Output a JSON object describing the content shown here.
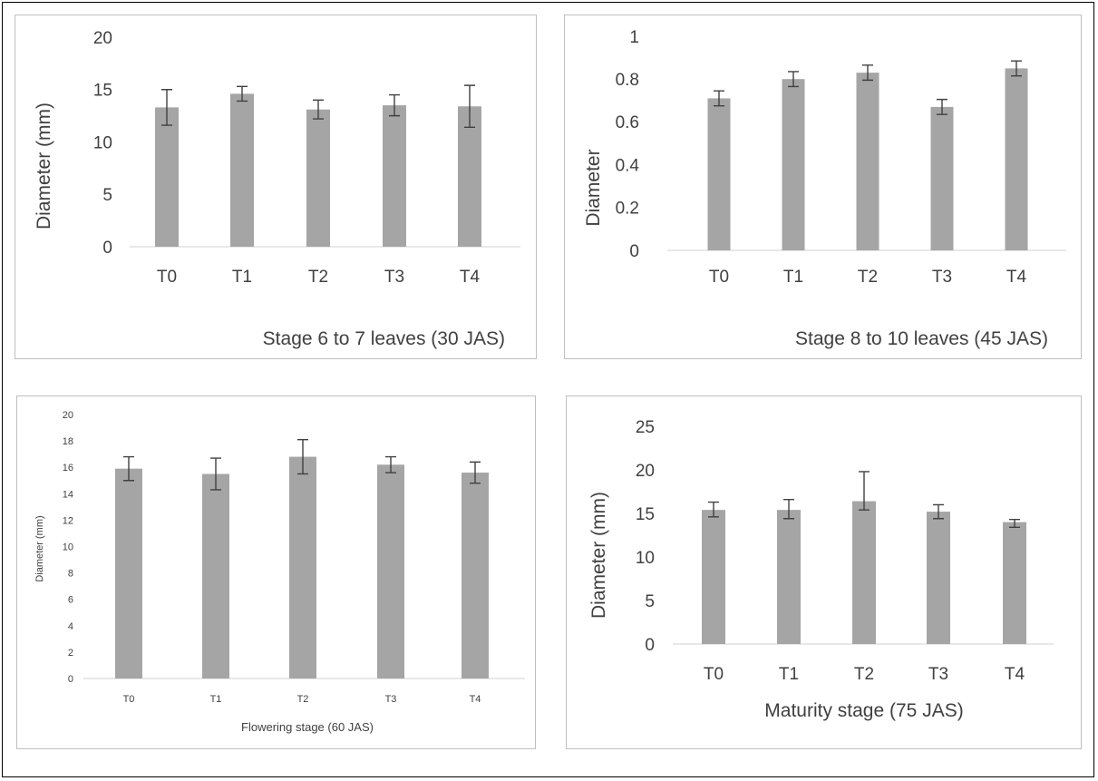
{
  "chart_data": [
    {
      "type": "bar",
      "categories": [
        "T0",
        "T1",
        "T2",
        "T3",
        "T4"
      ],
      "values": [
        13.3,
        14.6,
        13.1,
        13.5,
        13.4
      ],
      "error": [
        1.7,
        0.7,
        0.9,
        1.0,
        2.0
      ],
      "ylabel": "Diameter (mm)",
      "xlabel": "Stage 6 to 7 leaves (30 JAS)",
      "ylim": [
        0,
        20
      ],
      "yticks": [
        "0",
        "5",
        "10",
        "15",
        "20"
      ],
      "grid": false
    },
    {
      "type": "bar",
      "categories": [
        "T0",
        "T1",
        "T2",
        "T3",
        "T4"
      ],
      "values": [
        0.71,
        0.8,
        0.83,
        0.67,
        0.85
      ],
      "error": [
        0.035,
        0.035,
        0.035,
        0.035,
        0.035
      ],
      "ylabel": "Diameter",
      "xlabel": "Stage 8 to 10 leaves (45 JAS)",
      "ylim": [
        0,
        1
      ],
      "yticks": [
        "0",
        "0.2",
        "0.4",
        "0.6",
        "0.8",
        "1"
      ],
      "grid": false
    },
    {
      "type": "bar",
      "categories": [
        "T0",
        "T1",
        "T2",
        "T3",
        "T4"
      ],
      "values": [
        15.9,
        15.5,
        16.8,
        16.2,
        15.6
      ],
      "error": [
        0.9,
        1.2,
        1.3,
        0.6,
        0.8
      ],
      "ylabel": "Diameter (mm)",
      "xlabel": "Flowering stage (60 JAS)",
      "ylim": [
        0,
        20
      ],
      "yticks": [
        "0",
        "2",
        "4",
        "6",
        "8",
        "10",
        "12",
        "14",
        "16",
        "18",
        "20"
      ],
      "grid": false
    },
    {
      "type": "bar",
      "categories": [
        "T0",
        "T1",
        "T2",
        "T3",
        "T4"
      ],
      "values": [
        15.4,
        15.4,
        16.4,
        15.2,
        14.0
      ],
      "error_low": [
        0.8,
        1.0,
        1.0,
        0.8,
        0.6
      ],
      "error_high": [
        0.9,
        1.2,
        3.4,
        0.8,
        0.3
      ],
      "ylabel": "Diameter (mm)",
      "xlabel": "Maturity stage (75 JAS)",
      "ylim": [
        0,
        25
      ],
      "yticks": [
        "0",
        "5",
        "10",
        "15",
        "20",
        "25"
      ],
      "grid": false
    }
  ],
  "colors": {
    "bar": "#a5a5a5",
    "error_bar": "#404040",
    "axis_text": "#404040",
    "panel_border": "#bfbfbf"
  }
}
